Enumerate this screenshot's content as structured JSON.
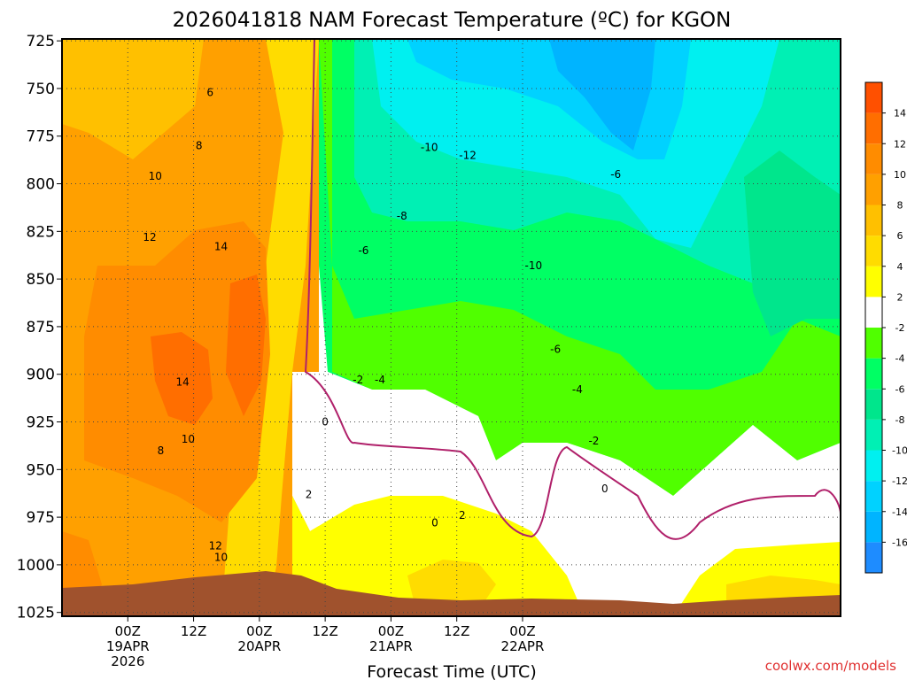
{
  "chart_data": {
    "type": "heatmap",
    "title": "2026041818 NAM Forecast Temperature (ºC) for KGON",
    "xlabel": "Forecast Time (UTC)",
    "ylabel": "",
    "credit": "coolwx.com/models",
    "y_axis": {
      "unit": "hPa",
      "inverted": true,
      "ticks": [
        725,
        750,
        775,
        800,
        825,
        850,
        875,
        900,
        925,
        950,
        975,
        1000,
        1025
      ],
      "ylim": [
        1027,
        724
      ]
    },
    "x_axis": {
      "unit": "forecast hour from 2026-04-18 18Z",
      "xlim": [
        -6,
        136
      ],
      "ticks": [
        {
          "hour": 6,
          "lines": [
            "00Z",
            "19APR",
            "2026"
          ]
        },
        {
          "hour": 18,
          "lines": [
            "12Z"
          ]
        },
        {
          "hour": 30,
          "lines": [
            "00Z",
            "20APR"
          ]
        },
        {
          "hour": 42,
          "lines": [
            "12Z"
          ]
        },
        {
          "hour": 54,
          "lines": [
            "00Z",
            "21APR"
          ]
        },
        {
          "hour": 66,
          "lines": [
            "12Z"
          ]
        },
        {
          "hour": 78,
          "lines": [
            "00Z",
            "22APR"
          ]
        }
      ]
    },
    "grid": "dotted",
    "colorbar": {
      "levels": [
        -18,
        -16,
        -14,
        -12,
        -10,
        -8,
        -6,
        -4,
        -2,
        2,
        4,
        6,
        8,
        10,
        12,
        14,
        16
      ],
      "labels": [
        "-16",
        "-14",
        "-12",
        "-10",
        "-8",
        "-6",
        "-4",
        "-2",
        "2",
        "4",
        "6",
        "8",
        "10",
        "12",
        "14"
      ],
      "colors": [
        "#1e8cff",
        "#00b4ff",
        "#00d2ff",
        "#00f0f0",
        "#00f0b4",
        "#00e68c",
        "#00ff64",
        "#50ff00",
        "#ffffff",
        "#ffff00",
        "#ffdc00",
        "#ffc000",
        "#ffa000",
        "#ff8c00",
        "#ff6e00",
        "#ff5000"
      ]
    },
    "contour_labels": [
      {
        "text": "6",
        "hour": 21,
        "p": 752
      },
      {
        "text": "8",
        "hour": 19,
        "p": 780
      },
      {
        "text": "10",
        "hour": 11,
        "p": 796
      },
      {
        "text": "12",
        "hour": 10,
        "p": 828
      },
      {
        "text": "14",
        "hour": 23,
        "p": 833
      },
      {
        "text": "14",
        "hour": 16,
        "p": 904
      },
      {
        "text": "10",
        "hour": 17,
        "p": 934
      },
      {
        "text": "8",
        "hour": 12,
        "p": 940
      },
      {
        "text": "12",
        "hour": 22,
        "p": 990
      },
      {
        "text": "10",
        "hour": 23,
        "p": 996
      },
      {
        "text": "2",
        "hour": 39,
        "p": 963
      },
      {
        "text": "0",
        "hour": 42,
        "p": 925
      },
      {
        "text": "-2",
        "hour": 48,
        "p": 903
      },
      {
        "text": "-4",
        "hour": 52,
        "p": 903
      },
      {
        "text": "-6",
        "hour": 49,
        "p": 835
      },
      {
        "text": "-8",
        "hour": 56,
        "p": 817
      },
      {
        "text": "-10",
        "hour": 61,
        "p": 781
      },
      {
        "text": "-12",
        "hour": 68,
        "p": 785
      },
      {
        "text": "0",
        "hour": 62,
        "p": 978
      },
      {
        "text": "2",
        "hour": 67,
        "p": 974
      },
      {
        "text": "-10",
        "hour": 80,
        "p": 843
      },
      {
        "text": "-6",
        "hour": 84,
        "p": 887
      },
      {
        "text": "-4",
        "hour": 88,
        "p": 908
      },
      {
        "text": "-2",
        "hour": 91,
        "p": 935
      },
      {
        "text": "0",
        "hour": 93,
        "p": 960
      },
      {
        "text": "-6",
        "hour": 95,
        "p": 795
      }
    ]
  }
}
